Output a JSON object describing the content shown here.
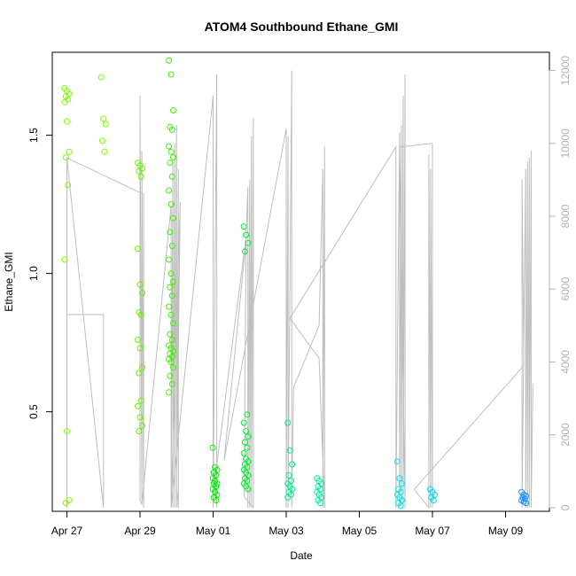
{
  "chart_data": {
    "type": "scatter",
    "title": "ATOM4 Southbound Ethane_GMI",
    "xlabel": "Date",
    "ylabel": "Ethane_GMI",
    "x_ticks": [
      "Apr 27",
      "Apr 29",
      "May 01",
      "May 03",
      "May 05",
      "May 07",
      "May 09"
    ],
    "x_tick_days": [
      0,
      2,
      4,
      6,
      8,
      10,
      12
    ],
    "xlim": [
      -0.4,
      13.2
    ],
    "ylim": [
      0.14,
      1.8
    ],
    "y_ticks": [
      0.5,
      1.0,
      1.5
    ],
    "y_tick_labels": [
      "0.5",
      "1.0",
      "1.5"
    ],
    "y2lim": [
      -100,
      12500
    ],
    "y2_ticks": [
      0,
      2000,
      4000,
      6000,
      8000,
      10000,
      12000
    ],
    "y2_tick_labels": [
      "0",
      "2000",
      "4000",
      "6000",
      "8000",
      "10000",
      "12000"
    ],
    "y2_series_color": "#bebebe",
    "grid": false,
    "colors": {
      "axis": "#000000",
      "secondary_axis": "#b0b0b0",
      "altitude_line": "#bebebe",
      "point_palette": [
        "#7cfc00",
        "#00ee00",
        "#00ee76",
        "#00e5ee",
        "#1e90ff"
      ]
    },
    "point_clusters": [
      {
        "day": 0.0,
        "values": [
          1.67,
          1.66,
          1.65,
          1.64,
          1.63,
          1.62,
          1.55,
          1.44,
          1.42,
          1.32,
          1.05,
          0.43,
          0.18,
          0.17
        ],
        "color": "#7cfc00"
      },
      {
        "day": 1.0,
        "values": [
          1.71,
          1.56,
          1.54,
          1.48,
          1.44
        ],
        "color": "#7cfc00"
      },
      {
        "day": 2.0,
        "values": [
          1.4,
          1.39,
          1.38,
          1.37,
          1.35,
          1.09,
          0.96,
          0.93,
          0.86,
          0.85,
          0.76,
          0.73,
          0.66,
          0.64,
          0.54,
          0.52,
          0.48,
          0.45,
          0.43
        ],
        "color": "#66f000"
      },
      {
        "day": 2.85,
        "values": [
          1.77,
          1.72,
          1.59,
          1.53,
          1.52,
          1.46,
          1.44,
          1.42,
          1.4,
          1.35,
          1.3,
          1.25,
          1.2,
          1.15,
          1.1,
          1.05,
          1.0,
          0.97,
          0.95,
          0.92,
          0.88,
          0.85,
          0.82,
          0.78,
          0.76,
          0.74,
          0.73,
          0.72,
          0.71,
          0.7,
          0.69,
          0.68,
          0.66,
          0.63,
          0.6,
          0.57
        ],
        "color": "#44ee00"
      },
      {
        "day": 4.05,
        "values": [
          0.37,
          0.3,
          0.29,
          0.28,
          0.27,
          0.26,
          0.25,
          0.24,
          0.24,
          0.23,
          0.22,
          0.21,
          0.2,
          0.19,
          0.18
        ],
        "color": "#00ee00"
      },
      {
        "day": 4.9,
        "values": [
          1.17,
          1.14,
          1.11,
          1.08,
          0.49,
          0.46,
          0.43,
          0.41,
          0.39,
          0.37,
          0.35,
          0.33,
          0.32,
          0.31,
          0.3,
          0.29,
          0.28,
          0.27,
          0.26,
          0.25,
          0.24,
          0.23,
          0.22
        ],
        "color": "#00ee30"
      },
      {
        "day": 6.1,
        "values": [
          0.46,
          0.36,
          0.31,
          0.27,
          0.25,
          0.24,
          0.23,
          0.22,
          0.21,
          0.2,
          0.19
        ],
        "color": "#00ee90"
      },
      {
        "day": 6.9,
        "values": [
          0.26,
          0.25,
          0.24,
          0.23,
          0.22,
          0.21,
          0.2,
          0.19,
          0.18,
          0.17
        ],
        "color": "#00eea0"
      },
      {
        "day": 9.1,
        "values": [
          0.32,
          0.26,
          0.24,
          0.22,
          0.21,
          0.2,
          0.19,
          0.18,
          0.17,
          0.16
        ],
        "color": "#00e5ee"
      },
      {
        "day": 10.0,
        "values": [
          0.22,
          0.21,
          0.2,
          0.19,
          0.18
        ],
        "color": "#00d8ee"
      },
      {
        "day": 12.5,
        "values": [
          0.21,
          0.2,
          0.195,
          0.19,
          0.185,
          0.18,
          0.175,
          0.17
        ],
        "color": "#1e90ff"
      }
    ],
    "altitude_path": [
      [
        0.0,
        9500
      ],
      [
        0.0,
        0
      ],
      [
        0.0,
        5300
      ],
      [
        1.0,
        5300
      ],
      [
        1.0,
        0
      ],
      [
        0.0,
        9600
      ],
      [
        2.1,
        8600
      ],
      [
        2.1,
        0
      ],
      [
        2.05,
        9800
      ],
      [
        2.05,
        100
      ],
      [
        2.0,
        11300
      ],
      [
        2.0,
        200
      ],
      [
        2.05,
        100
      ],
      [
        2.1,
        600
      ],
      [
        2.85,
        8300
      ],
      [
        2.85,
        0
      ],
      [
        2.9,
        9500
      ],
      [
        2.9,
        0
      ],
      [
        2.95,
        10000
      ],
      [
        2.95,
        0
      ],
      [
        3.0,
        10500
      ],
      [
        3.0,
        0
      ],
      [
        3.05,
        9300
      ],
      [
        3.05,
        0
      ],
      [
        3.0,
        600
      ],
      [
        3.1,
        8400
      ],
      [
        2.85,
        0
      ],
      [
        4.0,
        11300
      ],
      [
        4.0,
        0
      ],
      [
        4.1,
        11900
      ],
      [
        4.1,
        0
      ],
      [
        4.05,
        800
      ],
      [
        4.9,
        7400
      ],
      [
        4.95,
        8800
      ],
      [
        4.95,
        0
      ],
      [
        5.0,
        9000
      ],
      [
        5.0,
        0
      ],
      [
        5.05,
        10200
      ],
      [
        5.05,
        0
      ],
      [
        5.1,
        10700
      ],
      [
        5.1,
        0
      ],
      [
        4.85,
        300
      ],
      [
        4.9,
        7300
      ],
      [
        4.3,
        1300
      ],
      [
        6.0,
        10400
      ],
      [
        6.0,
        0
      ],
      [
        6.05,
        10200
      ],
      [
        6.05,
        0
      ],
      [
        6.15,
        12000
      ],
      [
        6.15,
        0
      ],
      [
        6.2,
        3300
      ],
      [
        6.9,
        5000
      ],
      [
        7.0,
        9300
      ],
      [
        7.0,
        0
      ],
      [
        7.05,
        9900
      ],
      [
        7.05,
        0
      ],
      [
        6.9,
        4100
      ],
      [
        6.1,
        5200
      ],
      [
        9.0,
        9900
      ],
      [
        9.0,
        0
      ],
      [
        9.1,
        10300
      ],
      [
        9.1,
        0
      ],
      [
        9.15,
        10500
      ],
      [
        9.15,
        0
      ],
      [
        9.2,
        11300
      ],
      [
        9.2,
        0
      ],
      [
        9.25,
        11900
      ],
      [
        9.25,
        0
      ],
      [
        9.1,
        9900
      ],
      [
        10.0,
        10000
      ],
      [
        10.0,
        0
      ],
      [
        9.95,
        9300
      ],
      [
        9.95,
        0
      ],
      [
        9.9,
        9700
      ],
      [
        9.9,
        0
      ],
      [
        9.5,
        500
      ],
      [
        12.5,
        3900
      ],
      [
        12.45,
        9000
      ],
      [
        12.45,
        0
      ],
      [
        12.55,
        9300
      ],
      [
        12.55,
        0
      ],
      [
        12.6,
        9500
      ],
      [
        12.6,
        0
      ],
      [
        12.65,
        9600
      ],
      [
        12.65,
        0
      ],
      [
        12.7,
        9800
      ],
      [
        12.7,
        0
      ],
      [
        12.75,
        3400
      ]
    ]
  }
}
